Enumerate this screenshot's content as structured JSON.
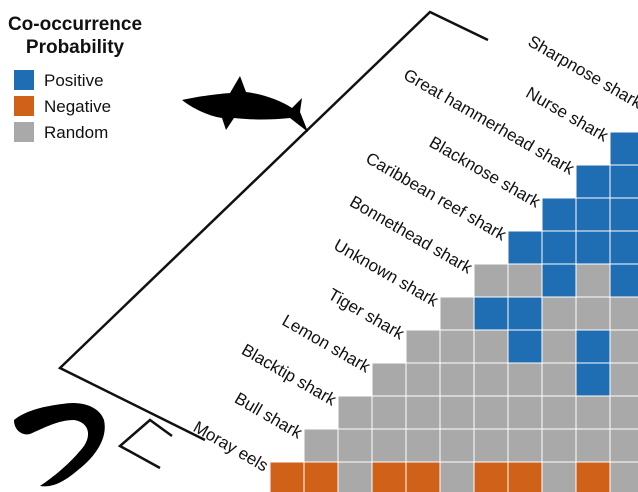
{
  "chart_data": {
    "type": "heatmap",
    "title": [
      "Co-occurrence",
      "Probability"
    ],
    "legend": [
      {
        "name": "Positive",
        "color": "#1f6db3"
      },
      {
        "name": "Negative",
        "color": "#cf6119"
      },
      {
        "name": "Random",
        "color": "#a9a9a9"
      }
    ],
    "rows": [
      {
        "label": "Sharpnose shark",
        "cells": []
      },
      {
        "label": "Nurse shark",
        "cells": [
          "Positive"
        ]
      },
      {
        "label": "Great hammerhead shark",
        "cells": [
          "Positive",
          "Positive"
        ]
      },
      {
        "label": "Blacknose shark",
        "cells": [
          "Positive",
          "Positive",
          "Positive"
        ]
      },
      {
        "label": "Caribbean reef shark",
        "cells": [
          "Positive",
          "Positive",
          "Positive",
          "Positive"
        ]
      },
      {
        "label": "Bonnethead shark",
        "cells": [
          "Positive",
          "Random",
          "Positive",
          "Random",
          "Random"
        ]
      },
      {
        "label": "Unknown shark",
        "cells": [
          "Random",
          "Random",
          "Random",
          "Positive",
          "Positive",
          "Random"
        ]
      },
      {
        "label": "Tiger shark",
        "cells": [
          "Random",
          "Positive",
          "Random",
          "Positive",
          "Random",
          "Random",
          "Random"
        ]
      },
      {
        "label": "Lemon shark",
        "cells": [
          "Random",
          "Positive",
          "Random",
          "Random",
          "Random",
          "Random",
          "Random",
          "Random"
        ]
      },
      {
        "label": "Blacktip shark",
        "cells": [
          "Random",
          "Random",
          "Random",
          "Random",
          "Random",
          "Random",
          "Random",
          "Random",
          "Random"
        ]
      },
      {
        "label": "Bull shark",
        "cells": [
          "Random",
          "Random",
          "Random",
          "Random",
          "Random",
          "Random",
          "Random",
          "Random",
          "Random",
          "Random"
        ]
      },
      {
        "label": "Moray eels",
        "cells": [
          "Random",
          "Negative",
          "Random",
          "Negative",
          "Negative",
          "Random",
          "Negative",
          "Negative",
          "Random",
          "Negative",
          "Negative"
        ]
      }
    ]
  }
}
